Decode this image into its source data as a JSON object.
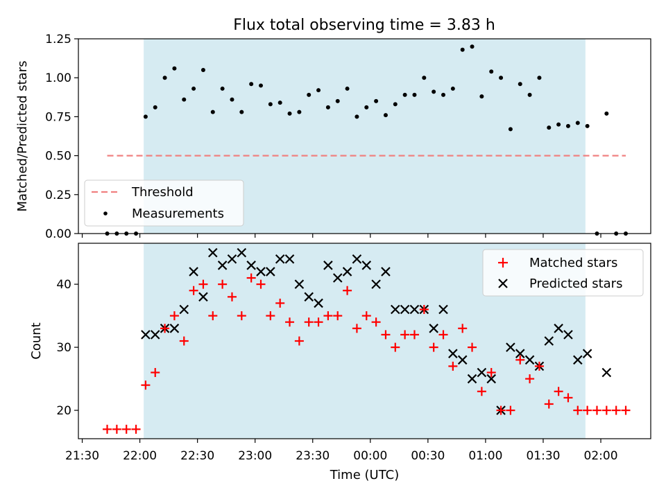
{
  "title": "Flux total observing time = 3.83 h",
  "chart_data": [
    {
      "type": "scatter",
      "ylabel": "Matched/Predicted stars",
      "ylim": [
        0,
        1.25
      ],
      "yticks": [
        "0.00",
        "0.25",
        "0.50",
        "0.75",
        "1.00",
        "1.25"
      ],
      "ytick_values": [
        0,
        0.25,
        0.5,
        0.75,
        1.0,
        1.25
      ],
      "shaded_span": [
        "22:02",
        "01:52"
      ],
      "threshold": {
        "name": "Threshold",
        "value": 0.5,
        "x_start": "21:43",
        "x_end": "02:13",
        "color": "#f08080"
      },
      "measurements": {
        "name": "Measurements",
        "x": [
          "21:43",
          "21:48",
          "21:53",
          "21:58",
          "22:03",
          "22:08",
          "22:13",
          "22:18",
          "22:23",
          "22:28",
          "22:33",
          "22:38",
          "22:43",
          "22:48",
          "22:53",
          "22:58",
          "23:03",
          "23:08",
          "23:13",
          "23:18",
          "23:23",
          "23:28",
          "23:33",
          "23:38",
          "23:43",
          "23:48",
          "23:53",
          "23:58",
          "00:03",
          "00:08",
          "00:13",
          "00:18",
          "00:23",
          "00:28",
          "00:33",
          "00:38",
          "00:43",
          "00:48",
          "00:53",
          "00:58",
          "01:03",
          "01:08",
          "01:13",
          "01:18",
          "01:23",
          "01:28",
          "01:33",
          "01:38",
          "01:43",
          "01:48",
          "01:53",
          "01:58",
          "02:03",
          "02:08",
          "02:13"
        ],
        "y": [
          0,
          0,
          0,
          0,
          0.75,
          0.81,
          1.0,
          1.06,
          0.86,
          0.93,
          1.05,
          0.78,
          0.93,
          0.86,
          0.78,
          0.96,
          0.95,
          0.83,
          0.84,
          0.77,
          0.78,
          0.89,
          0.92,
          0.81,
          0.85,
          0.93,
          0.75,
          0.81,
          0.85,
          0.76,
          0.83,
          0.89,
          0.89,
          1.0,
          0.91,
          0.89,
          0.93,
          1.18,
          1.2,
          0.88,
          1.04,
          1.0,
          0.67,
          0.96,
          0.89,
          1.0,
          0.68,
          0.7,
          0.69,
          0.71,
          0.69,
          0,
          0.77,
          0,
          0
        ]
      },
      "legend": [
        "Threshold",
        "Measurements"
      ],
      "legend_position": "lower-left"
    },
    {
      "type": "scatter",
      "ylabel": "Count",
      "xlabel": "Time (UTC)",
      "ylim": [
        15.5,
        46.5
      ],
      "yticks": [
        "20",
        "30",
        "40"
      ],
      "ytick_values": [
        20,
        30,
        40
      ],
      "xlim": [
        "21:28",
        "02:26"
      ],
      "xticks": [
        "21:30",
        "22:00",
        "22:30",
        "23:00",
        "23:30",
        "00:00",
        "00:30",
        "01:00",
        "01:30",
        "02:00"
      ],
      "shaded_span": [
        "22:02",
        "01:52"
      ],
      "matched": {
        "name": "Matched stars",
        "color": "#ff0000",
        "x": [
          "21:43",
          "21:48",
          "21:53",
          "21:58",
          "22:03",
          "22:08",
          "22:13",
          "22:18",
          "22:23",
          "22:28",
          "22:33",
          "22:38",
          "22:43",
          "22:48",
          "22:53",
          "22:58",
          "23:03",
          "23:08",
          "23:13",
          "23:18",
          "23:23",
          "23:28",
          "23:33",
          "23:38",
          "23:43",
          "23:48",
          "23:53",
          "23:58",
          "00:03",
          "00:08",
          "00:13",
          "00:18",
          "00:23",
          "00:28",
          "00:33",
          "00:38",
          "00:43",
          "00:48",
          "00:53",
          "00:58",
          "01:03",
          "01:08",
          "01:13",
          "01:18",
          "01:23",
          "01:28",
          "01:33",
          "01:38",
          "01:43",
          "01:48",
          "01:53",
          "01:58",
          "02:03",
          "02:08",
          "02:13"
        ],
        "y": [
          17,
          17,
          17,
          17,
          24,
          26,
          33,
          35,
          31,
          39,
          40,
          35,
          40,
          38,
          35,
          41,
          40,
          35,
          37,
          34,
          31,
          34,
          34,
          35,
          35,
          39,
          33,
          35,
          34,
          32,
          30,
          32,
          32,
          36,
          30,
          32,
          27,
          33,
          30,
          23,
          26,
          20,
          20,
          28,
          25,
          27,
          21,
          23,
          22,
          20,
          20,
          20,
          20,
          20,
          20
        ]
      },
      "predicted": {
        "name": "Predicted stars",
        "color": "#000000",
        "x": [
          "22:03",
          "22:08",
          "22:13",
          "22:18",
          "22:23",
          "22:28",
          "22:33",
          "22:38",
          "22:43",
          "22:48",
          "22:53",
          "22:58",
          "23:03",
          "23:08",
          "23:13",
          "23:18",
          "23:23",
          "23:28",
          "23:33",
          "23:38",
          "23:43",
          "23:48",
          "23:53",
          "23:58",
          "00:03",
          "00:08",
          "00:13",
          "00:18",
          "00:23",
          "00:28",
          "00:33",
          "00:38",
          "00:43",
          "00:48",
          "00:53",
          "00:58",
          "01:03",
          "01:08",
          "01:13",
          "01:18",
          "01:23",
          "01:28",
          "01:33",
          "01:38",
          "01:43",
          "01:48",
          "01:53",
          "02:03"
        ],
        "y": [
          32,
          32,
          33,
          33,
          36,
          42,
          38,
          45,
          43,
          44,
          45,
          43,
          42,
          42,
          44,
          44,
          40,
          38,
          37,
          43,
          41,
          42,
          44,
          43,
          40,
          42,
          36,
          36,
          36,
          36,
          33,
          36,
          29,
          28,
          25,
          26,
          25,
          20,
          30,
          29,
          28,
          27,
          31,
          33,
          32,
          28,
          29,
          26
        ]
      },
      "legend": [
        "Matched stars",
        "Predicted stars"
      ],
      "legend_position": "upper-right"
    }
  ]
}
